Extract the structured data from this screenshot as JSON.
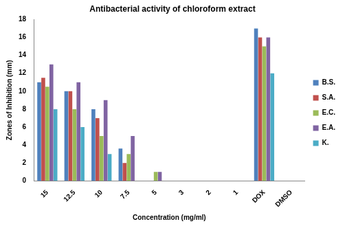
{
  "chart_data": {
    "type": "bar",
    "title": "Antibacterial activity of chloroform extract",
    "x_label": "Concentration (mg/ml)",
    "y_label": "Zones of Inhibition (mm)",
    "categories": [
      "15",
      "12.5",
      "10",
      "7.5",
      "5",
      "3",
      "2",
      "1",
      "DOX",
      "DMSO"
    ],
    "series": [
      {
        "name": "B.S.",
        "color": "#4f81bd",
        "values": [
          11,
          10,
          8,
          3.6,
          0,
          0,
          0,
          0,
          17,
          0
        ]
      },
      {
        "name": "S.A.",
        "color": "#c0504d",
        "values": [
          11.5,
          10,
          7,
          2,
          0,
          0,
          0,
          0,
          16,
          0
        ]
      },
      {
        "name": "E.C.",
        "color": "#9bbb59",
        "values": [
          10.5,
          8,
          5,
          3,
          1,
          0,
          0,
          0,
          15,
          0
        ]
      },
      {
        "name": "E.A.",
        "color": "#8064a2",
        "values": [
          13,
          11,
          9,
          5,
          1,
          0,
          0,
          0,
          16,
          0
        ]
      },
      {
        "name": "K.",
        "color": "#4bacc6",
        "values": [
          8,
          6,
          3,
          0,
          0,
          0,
          0,
          0,
          12,
          0
        ]
      }
    ],
    "ylim": [
      0,
      18
    ],
    "yticks": [
      0,
      2,
      4,
      6,
      8,
      10,
      12,
      14,
      16,
      18
    ],
    "grid": false,
    "legend": "right"
  }
}
